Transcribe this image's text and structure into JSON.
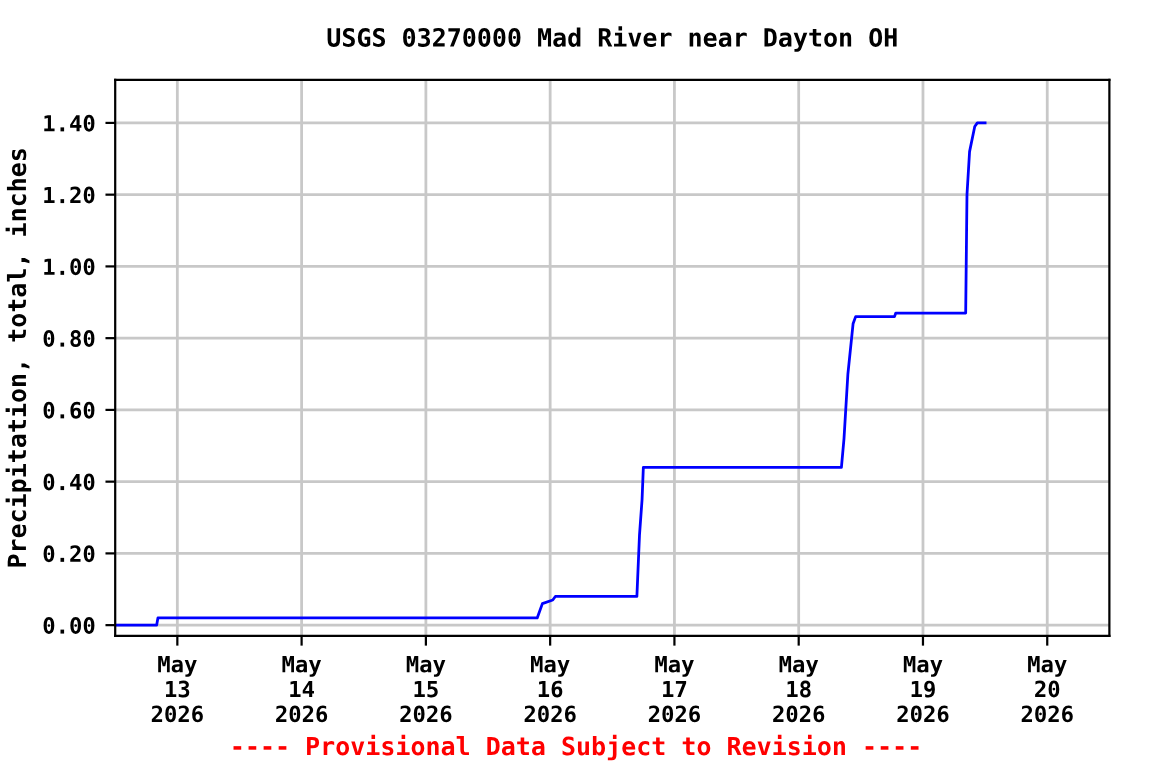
{
  "chart_data": {
    "type": "line",
    "title": "USGS 03270000 Mad River near Dayton OH",
    "ylabel": "Precipitation, total, inches",
    "annotations": [
      "---- Provisional Data Subject to Revision ----"
    ],
    "x": [
      "2026-05-12T12:00",
      "2026-05-12T20:00",
      "2026-05-12T20:15",
      "2026-05-15T21:30",
      "2026-05-15T22:30",
      "2026-05-16T00:30",
      "2026-05-16T01:00",
      "2026-05-16T16:45",
      "2026-05-16T17:15",
      "2026-05-16T17:45",
      "2026-05-16T18:00",
      "2026-05-18T08:15",
      "2026-05-18T08:45",
      "2026-05-18T09:30",
      "2026-05-18T10:30",
      "2026-05-18T11:00",
      "2026-05-18T18:30",
      "2026-05-18T18:45",
      "2026-05-19T08:15",
      "2026-05-19T08:30",
      "2026-05-19T09:00",
      "2026-05-19T10:00",
      "2026-05-19T10:30",
      "2026-05-19T12:00"
    ],
    "series": [
      {
        "color": "#0000ff",
        "values": [
          0.0,
          0.0,
          0.02,
          0.02,
          0.06,
          0.07,
          0.08,
          0.08,
          0.25,
          0.35,
          0.44,
          0.44,
          0.52,
          0.7,
          0.84,
          0.86,
          0.86,
          0.87,
          0.87,
          1.2,
          1.32,
          1.39,
          1.4,
          1.4
        ]
      }
    ],
    "xlim": [
      "2026-05-12T12:00",
      "2026-05-20T12:00"
    ],
    "xticks": [
      {
        "value": "2026-05-13",
        "label": "May\n13\n2026"
      },
      {
        "value": "2026-05-14",
        "label": "May\n14\n2026"
      },
      {
        "value": "2026-05-15",
        "label": "May\n15\n2026"
      },
      {
        "value": "2026-05-16",
        "label": "May\n16\n2026"
      },
      {
        "value": "2026-05-17",
        "label": "May\n17\n2026"
      },
      {
        "value": "2026-05-18",
        "label": "May\n18\n2026"
      },
      {
        "value": "2026-05-19",
        "label": "May\n19\n2026"
      },
      {
        "value": "2026-05-20",
        "label": "May\n20\n2026"
      }
    ],
    "ylim": [
      -0.03,
      1.52
    ],
    "yticks": [
      {
        "value": 0,
        "label": "0.00"
      },
      {
        "value": 0.2,
        "label": "0.20"
      },
      {
        "value": 0.4,
        "label": "0.40"
      },
      {
        "value": 0.6,
        "label": "0.60"
      },
      {
        "value": 0.8,
        "label": "0.80"
      },
      {
        "value": 1.0,
        "label": "1.00"
      },
      {
        "value": 1.2,
        "label": "1.20"
      },
      {
        "value": 1.4,
        "label": "1.40"
      }
    ],
    "grid": true,
    "line_style": "solid",
    "marker": "none"
  }
}
